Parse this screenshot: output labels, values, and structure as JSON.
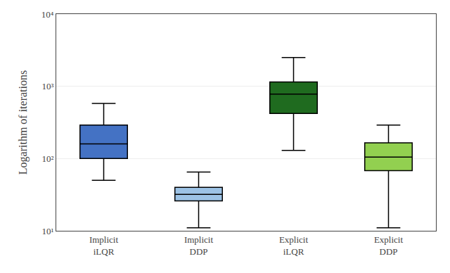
{
  "chart_data": {
    "type": "box",
    "categories": [
      "Implicit\niLQR",
      "Implicit\nDDP",
      "Explicit\niLQR",
      "Explicit\nDDP"
    ],
    "boxes": [
      {
        "whisker_low": 50,
        "q1": 100,
        "median": 160,
        "q3": 290,
        "whisker_high": 580
      },
      {
        "whisker_low": 11,
        "q1": 26,
        "median": 32,
        "q3": 40,
        "whisker_high": 65
      },
      {
        "whisker_low": 130,
        "q1": 420,
        "median": 780,
        "q3": 1150,
        "whisker_high": 2500
      },
      {
        "whisker_low": 11,
        "q1": 68,
        "median": 105,
        "q3": 165,
        "whisker_high": 290
      }
    ],
    "colors": [
      "#4472C4",
      "#9DC3E6",
      "#1F6B1F",
      "#92D050"
    ],
    "ylabel": "Logarithm of iterations",
    "log": "y",
    "ylim": [
      10,
      10000
    ],
    "yticks": [
      {
        "value": 10,
        "label": "10¹"
      },
      {
        "value": 100,
        "label": "10²"
      },
      {
        "value": 1000,
        "label": "10³"
      },
      {
        "value": 10000,
        "label": "10⁴"
      }
    ],
    "grid": true
  }
}
